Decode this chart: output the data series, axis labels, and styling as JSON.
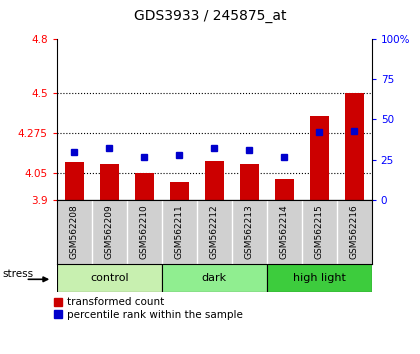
{
  "title": "GDS3933 / 245875_at",
  "samples": [
    "GSM562208",
    "GSM562209",
    "GSM562210",
    "GSM562211",
    "GSM562212",
    "GSM562213",
    "GSM562214",
    "GSM562215",
    "GSM562216"
  ],
  "red_values": [
    4.11,
    4.1,
    4.05,
    4.0,
    4.12,
    4.1,
    4.02,
    4.37,
    4.5
  ],
  "blue_values_pct": [
    30,
    32,
    27,
    28,
    32,
    31,
    27,
    42,
    43
  ],
  "ymin": 3.9,
  "ymax": 4.8,
  "y2min": 0,
  "y2max": 100,
  "yticks": [
    3.9,
    4.05,
    4.275,
    4.5,
    4.8
  ],
  "ytick_labels": [
    "3.9",
    "4.05",
    "4.275",
    "4.5",
    "4.8"
  ],
  "y2ticks": [
    0,
    25,
    50,
    75,
    100
  ],
  "y2tick_labels": [
    "0",
    "25",
    "50",
    "75",
    "100%"
  ],
  "dotted_lines": [
    4.05,
    4.275,
    4.5
  ],
  "groups": [
    {
      "label": "control",
      "start": 0,
      "end": 3,
      "color": "#c8f0b0"
    },
    {
      "label": "dark",
      "start": 3,
      "end": 6,
      "color": "#90ee90"
    },
    {
      "label": "high light",
      "start": 6,
      "end": 9,
      "color": "#3dcc3d"
    }
  ],
  "bar_width": 0.55,
  "blue_marker_size": 5,
  "red_color": "#cc0000",
  "blue_color": "#0000cc",
  "legend_red_label": "transformed count",
  "legend_blue_label": "percentile rank within the sample",
  "stress_label": "stress",
  "tick_label_area_color": "#d0d0d0"
}
